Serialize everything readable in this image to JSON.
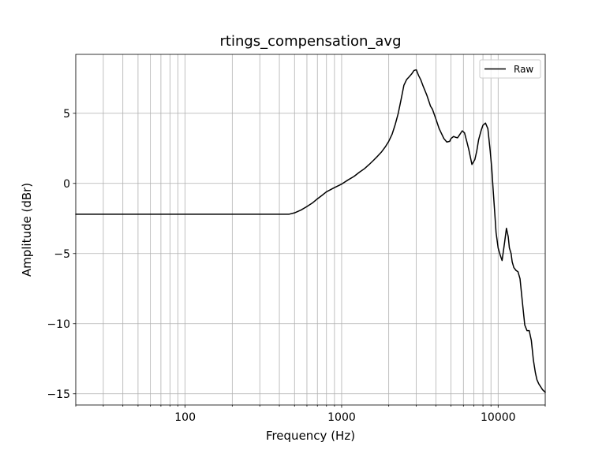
{
  "chart_data": {
    "type": "line",
    "title": "rtings_compensation_avg",
    "xlabel": "Frequency (Hz)",
    "ylabel": "Amplitude (dBr)",
    "xscale": "log",
    "xlim": [
      20,
      20000
    ],
    "ylim": [
      -15.8,
      9.2
    ],
    "xticks": [
      {
        "value": 100,
        "label": "100"
      },
      {
        "value": 1000,
        "label": "1000"
      },
      {
        "value": 10000,
        "label": "10000"
      }
    ],
    "yticks": [
      {
        "value": 5,
        "label": "5"
      },
      {
        "value": 0,
        "label": "0"
      },
      {
        "value": -5,
        "label": "−5"
      },
      {
        "value": -10,
        "label": "−10"
      },
      {
        "value": -15,
        "label": "−15"
      }
    ],
    "grid": "major and minor (log x)",
    "legend": {
      "placement": "top-right",
      "entries": [
        "Raw"
      ]
    },
    "series": [
      {
        "name": "Raw",
        "color": "#000000",
        "x": [
          20,
          50,
          100,
          200,
          300,
          400,
          460,
          500,
          550,
          600,
          650,
          700,
          750,
          800,
          900,
          1000,
          1100,
          1200,
          1300,
          1400,
          1500,
          1600,
          1700,
          1800,
          1900,
          2000,
          2100,
          2200,
          2300,
          2400,
          2500,
          2600,
          2700,
          2800,
          2900,
          3000,
          3100,
          3200,
          3300,
          3500,
          3700,
          3800,
          4000,
          4200,
          4500,
          4700,
          4900,
          5000,
          5200,
          5300,
          5500,
          5700,
          5900,
          6100,
          6300,
          6500,
          6800,
          7100,
          7300,
          7500,
          7800,
          8000,
          8300,
          8600,
          8900,
          9100,
          9300,
          9500,
          9700,
          10000,
          10300,
          10600,
          11000,
          11300,
          11600,
          11800,
          12100,
          12300,
          12600,
          13000,
          13400,
          13800,
          14300,
          14800,
          15300,
          15800,
          16300,
          16800,
          17300,
          17700,
          18200,
          18700,
          19200,
          19600,
          20000
        ],
        "y": [
          -2.2,
          -2.2,
          -2.2,
          -2.2,
          -2.2,
          -2.2,
          -2.2,
          -2.1,
          -1.9,
          -1.65,
          -1.4,
          -1.1,
          -0.85,
          -0.6,
          -0.3,
          -0.05,
          0.25,
          0.5,
          0.8,
          1.05,
          1.35,
          1.65,
          1.95,
          2.25,
          2.6,
          3.0,
          3.5,
          4.2,
          5.0,
          6.0,
          7.0,
          7.4,
          7.6,
          7.8,
          8.05,
          8.1,
          7.7,
          7.4,
          7.0,
          6.3,
          5.5,
          5.3,
          4.6,
          3.9,
          3.2,
          2.95,
          3.0,
          3.2,
          3.35,
          3.3,
          3.25,
          3.5,
          3.75,
          3.6,
          3.0,
          2.4,
          1.35,
          1.7,
          2.3,
          3.1,
          3.8,
          4.15,
          4.3,
          3.9,
          2.3,
          1.1,
          -0.5,
          -2.0,
          -3.5,
          -4.6,
          -5.1,
          -5.5,
          -4.2,
          -3.2,
          -3.8,
          -4.6,
          -5.0,
          -5.6,
          -6.0,
          -6.2,
          -6.3,
          -6.8,
          -8.5,
          -10.1,
          -10.5,
          -10.5,
          -11.2,
          -12.6,
          -13.5,
          -14.0,
          -14.3,
          -14.5,
          -14.7,
          -14.8,
          -14.9
        ]
      }
    ]
  }
}
